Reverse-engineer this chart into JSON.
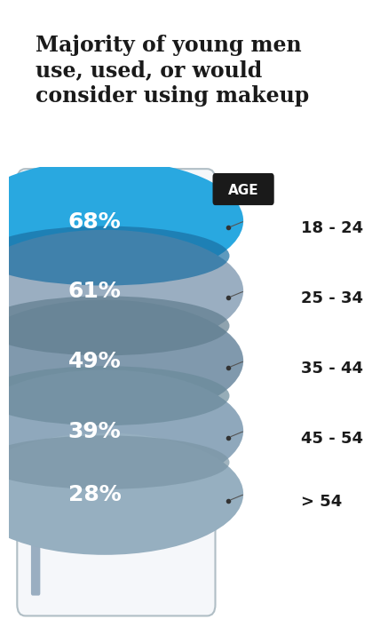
{
  "title": "Majority of young men\nuse, used, or would\nconsider using makeup",
  "title_fontsize": 17,
  "background_color": "#ffffff",
  "categories": [
    "68%",
    "61%",
    "49%",
    "39%",
    "28%"
  ],
  "age_labels": [
    "18 - 24",
    "25 - 34",
    "35 - 44",
    "45 - 54",
    "> 54"
  ],
  "circle_colors": [
    "#29a8e0",
    "#9aaec1",
    "#8099ad",
    "#8fa8bc",
    "#96afc0"
  ],
  "overlap_colors": [
    "#1a6fa3",
    "#607d8e",
    "#6a8a9a",
    "#7a95a5"
  ],
  "label_fontsize": 18,
  "age_label_fontsize": 13,
  "age_badge_color": "#1a1a1a",
  "age_badge_text": "AGE",
  "panel_facecolor": "#f5f7fa",
  "panel_edgecolor": "#b0bec5",
  "annotation_color": "#333333"
}
